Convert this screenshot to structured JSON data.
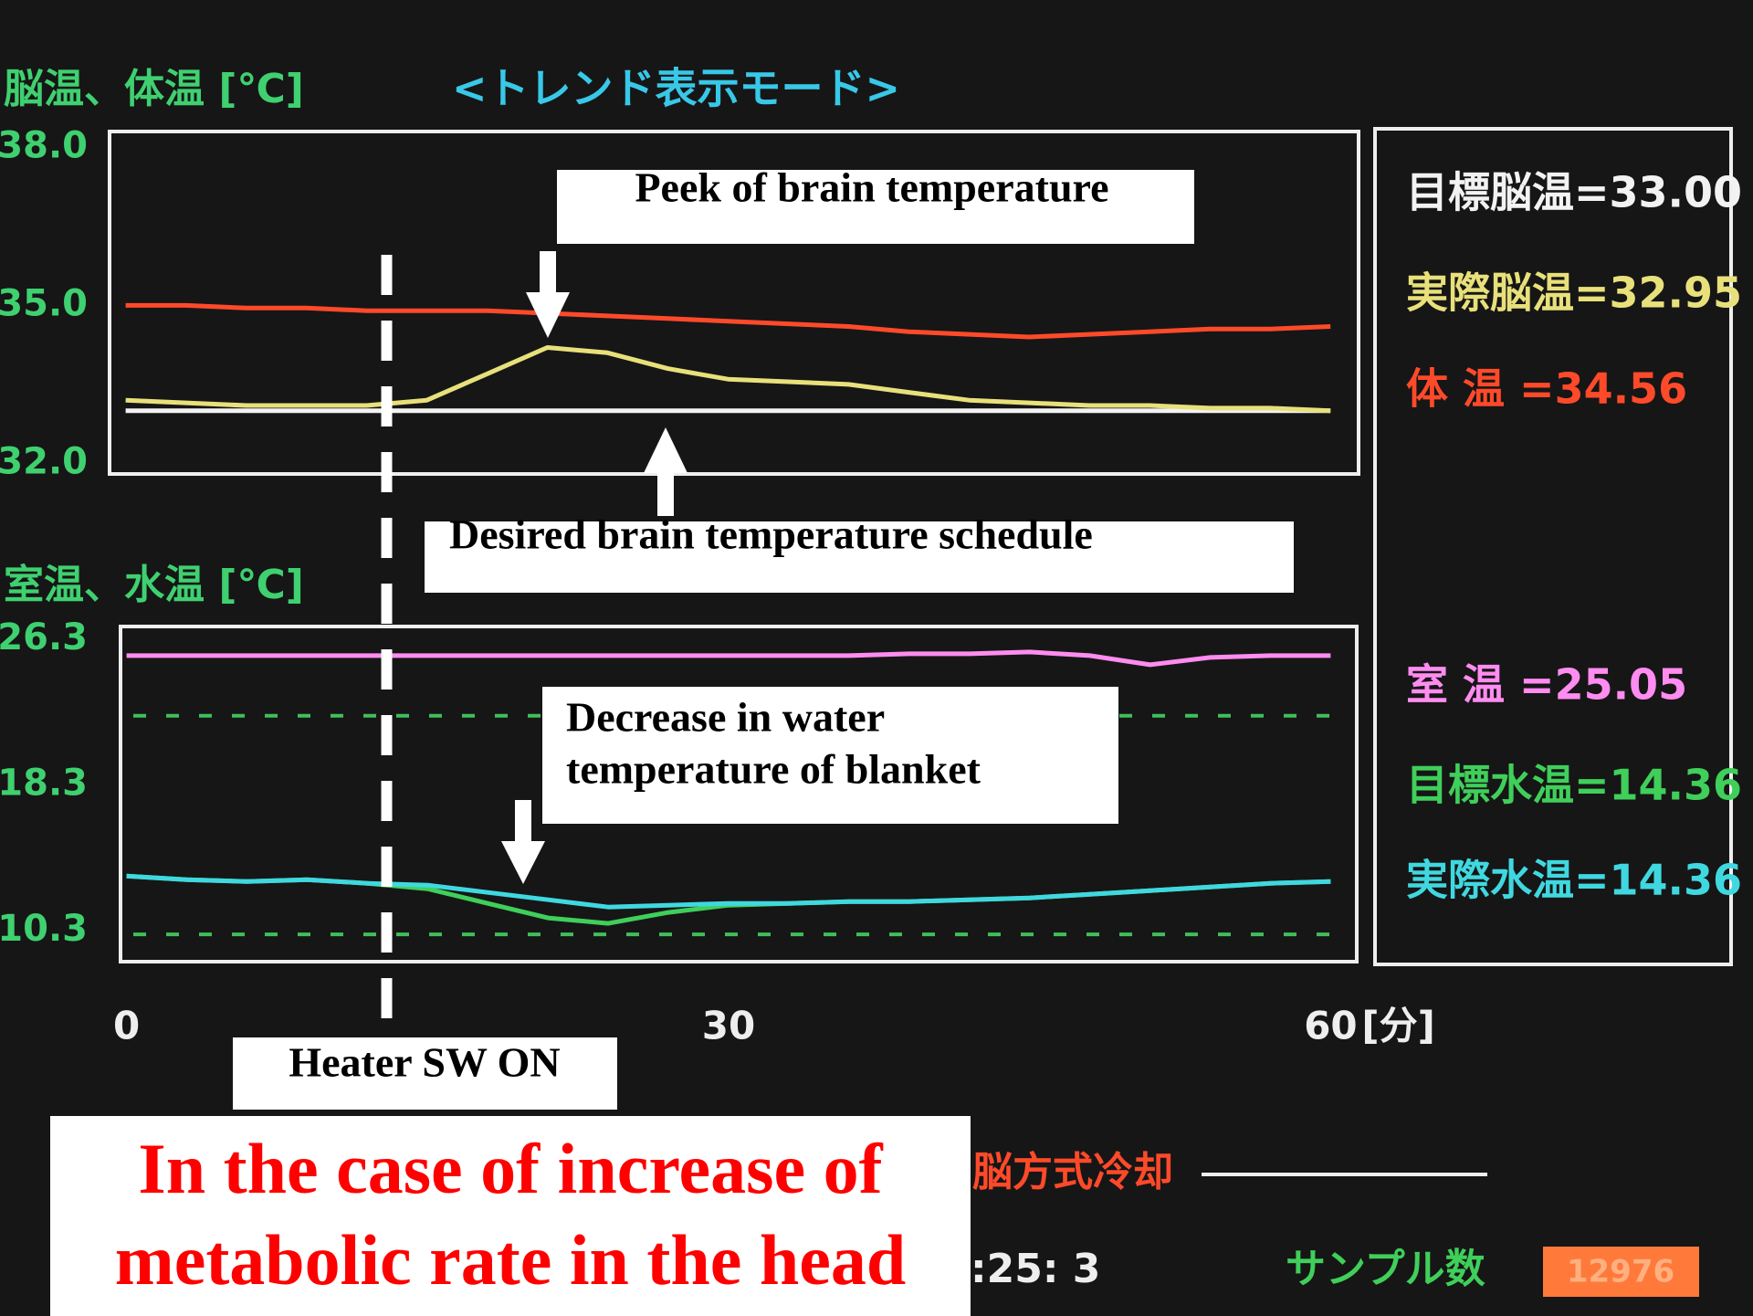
{
  "screen_title": "<トレンド表示モード>",
  "chart_data": [
    {
      "type": "line",
      "title": "脳温、体温 [℃]",
      "x": [
        0,
        3,
        6,
        9,
        12,
        15,
        18,
        21,
        24,
        27,
        30,
        33,
        36,
        39,
        42,
        45,
        48,
        51,
        54,
        57,
        60
      ],
      "xlim": [
        -0.8,
        61.4
      ],
      "ylim": [
        31.8,
        38.3
      ],
      "yticks": [
        {
          "value": 38,
          "label": "38.0"
        },
        {
          "value": 35,
          "label": "35.0"
        },
        {
          "value": 32,
          "label": "32.0"
        }
      ],
      "tick_color": "#3fd070",
      "series": [
        {
          "color": "#ff4a2a",
          "values": [
            35.0,
            35.0,
            34.95,
            34.95,
            34.9,
            34.9,
            34.9,
            34.85,
            34.8,
            34.75,
            34.7,
            34.65,
            34.6,
            34.5,
            34.45,
            34.4,
            34.45,
            34.5,
            34.55,
            34.55,
            34.6
          ]
        },
        {
          "color": "#f2f2f2",
          "values": [
            33.0,
            33.0,
            33.0,
            33.0,
            33.0,
            33.0,
            33.0,
            33.0,
            33.0,
            33.0,
            33.0,
            33.0,
            33.0,
            33.0,
            33.0,
            33.0,
            33.0,
            33.0,
            33.0,
            33.0,
            33.0
          ]
        },
        {
          "color": "#e8e07a",
          "values": [
            33.2,
            33.15,
            33.1,
            33.1,
            33.1,
            33.2,
            33.7,
            34.2,
            34.1,
            33.8,
            33.6,
            33.55,
            33.5,
            33.35,
            33.2,
            33.15,
            33.1,
            33.1,
            33.05,
            33.05,
            33.0
          ]
        }
      ]
    },
    {
      "type": "line",
      "title": "室温、水温 [℃]",
      "x": [
        0,
        3,
        6,
        9,
        12,
        15,
        18,
        21,
        24,
        27,
        30,
        33,
        36,
        39,
        42,
        45,
        48,
        51,
        54,
        57,
        60
      ],
      "xlim": [
        -0.3,
        61.3
      ],
      "xticks": [
        0,
        30,
        60
      ],
      "xlabel": "[分]",
      "ylim": [
        8.6,
        27.0
      ],
      "yticks": [
        {
          "value": 26.3,
          "label": "26.3"
        },
        {
          "value": 18.3,
          "label": "18.3"
        },
        {
          "value": 10.3,
          "label": "10.3"
        }
      ],
      "tick_color": "#3fd070",
      "hlines": [
        22.1,
        10.1
      ],
      "hline_color": "#3fbf5a",
      "series": [
        {
          "color": "#ff8cf0",
          "values": [
            25.4,
            25.4,
            25.4,
            25.4,
            25.4,
            25.4,
            25.4,
            25.4,
            25.4,
            25.4,
            25.4,
            25.4,
            25.4,
            25.5,
            25.5,
            25.6,
            25.4,
            24.9,
            25.3,
            25.4,
            25.4
          ]
        },
        {
          "color": "#3fcf5a",
          "values": [
            13.3,
            13.1,
            13.0,
            13.1,
            12.9,
            12.6,
            11.8,
            11.0,
            10.7,
            11.3,
            11.7,
            11.8,
            11.9,
            11.9,
            12.0,
            12.1,
            12.3,
            12.5,
            12.7,
            12.9,
            13.0
          ]
        },
        {
          "color": "#40d8e0",
          "values": [
            13.3,
            13.1,
            13.0,
            13.1,
            12.9,
            12.8,
            12.4,
            12.0,
            11.6,
            11.7,
            11.8,
            11.8,
            11.9,
            11.9,
            12.0,
            12.1,
            12.3,
            12.5,
            12.7,
            12.9,
            13.0
          ]
        }
      ]
    }
  ],
  "heater": {
    "x": 13,
    "label": "Heater SW ON"
  },
  "panel": [
    {
      "text": "目標脳温=33.00",
      "color": "#f2f2f2"
    },
    {
      "text": "実際脳温=32.95",
      "color": "#e8e07a"
    },
    {
      "text": "体 温 =34.56",
      "color": "#ff4a2a"
    },
    {
      "text": "室 温 =25.05",
      "color": "#ff8cf0"
    },
    {
      "text": "目標水温=14.36",
      "color": "#3fcf5a"
    },
    {
      "text": "実際水温=14.36",
      "color": "#40d8e0"
    }
  ],
  "annotations": {
    "peak": "Peek of brain temperature",
    "schedule": "Desired brain temperature schedule",
    "water": [
      "Decrease in water",
      "temperature of blanket"
    ]
  },
  "caption": [
    "In the case of increase of",
    "metabolic rate in the head"
  ],
  "status": {
    "mode": "脳方式冷却",
    "time": ":25: 3",
    "sample_label": "サンプル数",
    "sample_count": 12976
  }
}
